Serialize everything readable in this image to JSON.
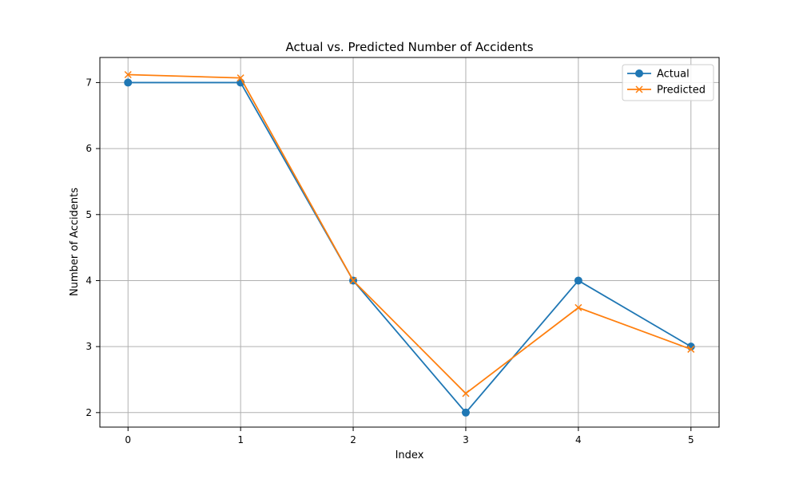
{
  "chart_data": {
    "type": "line",
    "title": "Actual vs. Predicted Number of Accidents",
    "xlabel": "Index",
    "ylabel": "Number of Accidents",
    "x": [
      0,
      1,
      2,
      3,
      4,
      5
    ],
    "xlim": [
      -0.25,
      5.25
    ],
    "ylim": [
      1.78,
      7.38
    ],
    "xticks": [
      0,
      1,
      2,
      3,
      4,
      5
    ],
    "yticks": [
      2,
      3,
      4,
      5,
      6,
      7
    ],
    "grid": true,
    "legend_position": "upper right",
    "series": [
      {
        "name": "Actual",
        "values": [
          7,
          7,
          4,
          2,
          4,
          3
        ],
        "color": "#1f77b4",
        "marker": "circle"
      },
      {
        "name": "Predicted",
        "values": [
          7.12,
          7.07,
          4.0,
          2.29,
          3.59,
          2.96
        ],
        "color": "#ff7f0e",
        "marker": "x"
      }
    ]
  }
}
